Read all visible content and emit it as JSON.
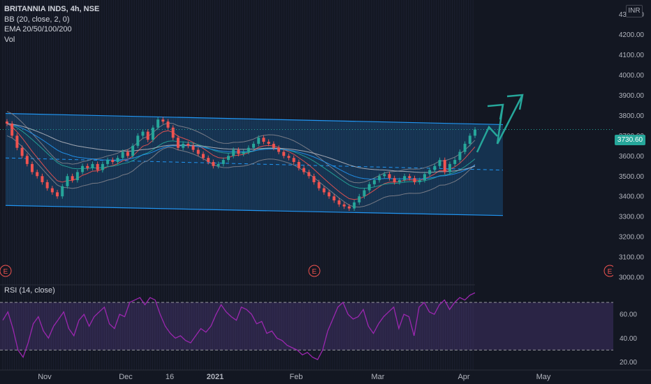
{
  "legend": {
    "title": "BRITANNIA INDS, 4h, NSE",
    "line2": "BB (20, close, 2, 0)",
    "line3": "EMA 20/50/100/200",
    "line4": "Vol"
  },
  "rsi_label": "RSI (14, close)",
  "currency_button": "INR",
  "last_price": "3730.60",
  "earnings_marker": "E",
  "colors": {
    "background": "#131722",
    "up": "#26a69a",
    "down": "#ef5350",
    "channel": "#2196f3",
    "rsi": "#9c27b0",
    "arrow": "#26a69a"
  },
  "chart_data": [
    {
      "type": "candlestick",
      "title": "BRITANNIA INDS, 4h, NSE",
      "price_axis_ticks": [
        "4300.00",
        "4200.00",
        "4100.00",
        "4000.00",
        "3900.00",
        "3800.00",
        "3700.00",
        "3600.00",
        "3500.00",
        "3400.00",
        "3300.00",
        "3200.00",
        "3100.00",
        "3000.00"
      ],
      "time_axis_ticks": [
        "Nov",
        "Dec",
        "16",
        "2021",
        "Feb",
        "Mar",
        "Apr",
        "May"
      ],
      "ylim": [
        3000,
        4330
      ],
      "last_price": 3730.6,
      "close_series": [
        3760,
        3700,
        3640,
        3600,
        3560,
        3520,
        3500,
        3470,
        3440,
        3420,
        3400,
        3450,
        3500,
        3480,
        3520,
        3550,
        3540,
        3560,
        3530,
        3560,
        3580,
        3570,
        3590,
        3620,
        3600,
        3650,
        3700,
        3720,
        3680,
        3740,
        3780,
        3770,
        3740,
        3690,
        3640,
        3660,
        3650,
        3630,
        3610,
        3590,
        3570,
        3550,
        3560,
        3580,
        3600,
        3630,
        3610,
        3620,
        3640,
        3660,
        3690,
        3670,
        3660,
        3640,
        3620,
        3600,
        3590,
        3570,
        3540,
        3520,
        3500,
        3470,
        3440,
        3420,
        3400,
        3380,
        3360,
        3350,
        3340,
        3370,
        3400,
        3430,
        3460,
        3480,
        3500,
        3510,
        3490,
        3470,
        3480,
        3500,
        3490,
        3470,
        3480,
        3510,
        3530,
        3550,
        3580,
        3520,
        3560,
        3580,
        3620,
        3660,
        3700,
        3730.6
      ],
      "bollinger_note": "BB (20, close, 2, 0)",
      "regression_channel": {
        "upper_start": 3810,
        "upper_end": 3755,
        "lower_start": 3355,
        "lower_end": 3305,
        "mid_start": 3590,
        "mid_end": 3530
      },
      "projection_arrows": 2
    },
    {
      "type": "line",
      "title": "RSI (14, close)",
      "y_ticks": [
        "60.00",
        "40.00",
        "20.00"
      ],
      "ylim": [
        15,
        80
      ],
      "bands": [
        30,
        70
      ],
      "values": [
        55,
        62,
        48,
        30,
        24,
        36,
        52,
        58,
        46,
        40,
        50,
        56,
        62,
        48,
        42,
        55,
        60,
        50,
        58,
        62,
        66,
        52,
        48,
        60,
        58,
        70,
        72,
        74,
        68,
        74,
        72,
        60,
        50,
        44,
        40,
        42,
        38,
        36,
        42,
        48,
        45,
        50,
        60,
        68,
        62,
        58,
        55,
        66,
        64,
        60,
        52,
        54,
        44,
        46,
        40,
        38,
        34,
        32,
        30,
        26,
        28,
        24,
        22,
        30,
        46,
        56,
        66,
        70,
        60,
        56,
        58,
        64,
        50,
        44,
        52,
        58,
        62,
        66,
        48,
        60,
        58,
        42,
        66,
        70,
        62,
        60,
        68,
        72,
        64,
        70,
        74,
        72,
        76,
        78
      ]
    }
  ]
}
